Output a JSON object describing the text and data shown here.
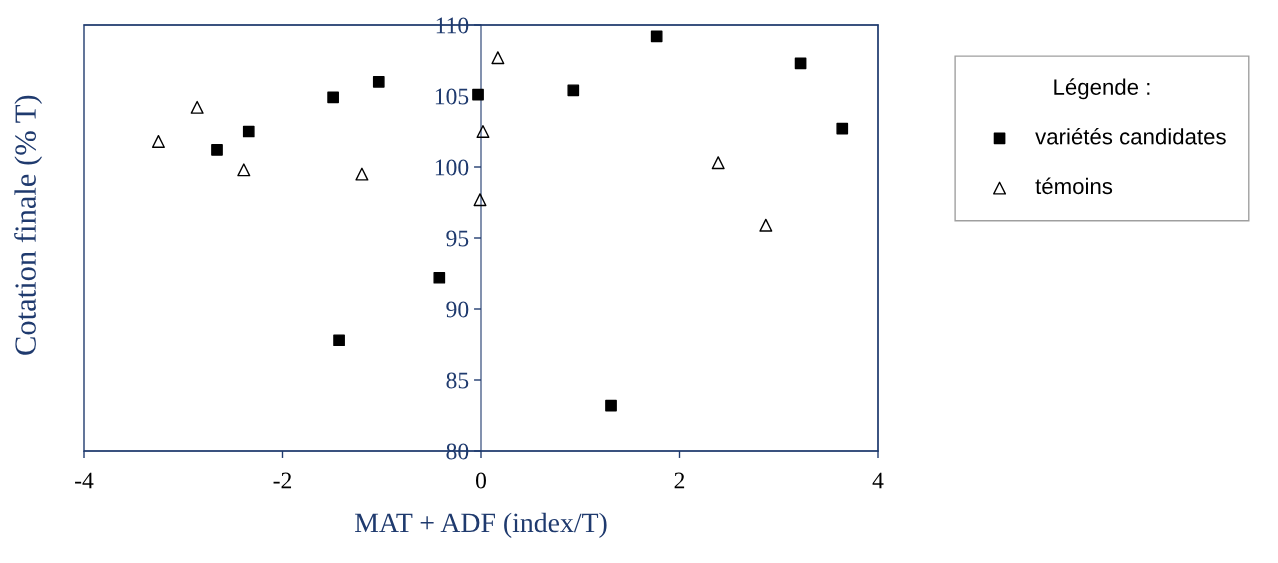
{
  "chart_data": {
    "type": "scatter",
    "xlabel": "MAT + ADF (index/T)",
    "ylabel": "Cotation finale (% T)",
    "legend_title": "Légende :",
    "xlim": [
      -4,
      4
    ],
    "xticks": [
      -4,
      -2,
      0,
      2,
      4
    ],
    "ylim": [
      80,
      110
    ],
    "yticks": [
      80,
      85,
      90,
      95,
      100,
      105,
      110
    ],
    "grid": false,
    "legend": "right",
    "series": [
      {
        "name": "variétés candidates",
        "color": "#000000",
        "marker": "square",
        "x": [
          -2.66,
          -2.34,
          -1.49,
          -1.03,
          -0.03,
          -0.42,
          -1.43,
          0.93,
          1.77,
          1.31,
          3.22,
          3.64
        ],
        "values": [
          101.2,
          102.5,
          104.9,
          106.0,
          105.1,
          92.2,
          87.8,
          105.4,
          109.2,
          83.2,
          107.3,
          102.7
        ]
      },
      {
        "name": "témoins",
        "color": "#000000",
        "marker": "triangle",
        "x": [
          -3.25,
          -2.86,
          -2.39,
          -1.2,
          0.02,
          -0.01,
          0.17,
          2.39,
          2.87
        ],
        "values": [
          101.8,
          104.2,
          99.8,
          99.5,
          102.5,
          97.7,
          107.7,
          100.3,
          95.9
        ]
      }
    ]
  }
}
